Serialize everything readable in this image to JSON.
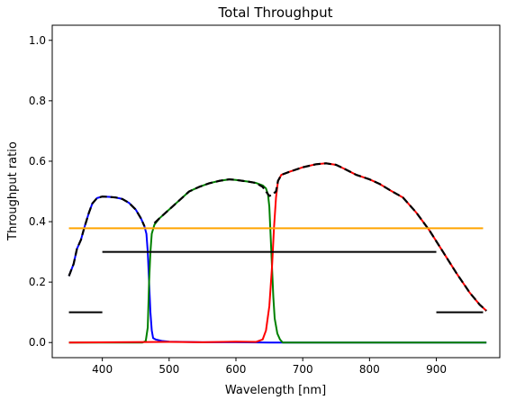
{
  "chart_data": {
    "type": "line",
    "title": "Total Throughput",
    "xlabel": "Wavelength [nm]",
    "ylabel": "Throughput ratio",
    "xlim": [
      325,
      995
    ],
    "ylim": [
      -0.05,
      1.05
    ],
    "xticks": [
      400,
      500,
      600,
      700,
      800,
      900
    ],
    "yticks": [
      0.0,
      0.2,
      0.4,
      0.6,
      0.8,
      1.0
    ],
    "x_tick_labels": [
      "400",
      "500",
      "600",
      "700",
      "800",
      "900"
    ],
    "y_tick_labels": [
      "0.0",
      "0.2",
      "0.4",
      "0.6",
      "0.8",
      "1.0"
    ],
    "grid": false,
    "legend": false,
    "series": [
      {
        "color": "#0000ff",
        "style": "solid",
        "points": [
          [
            350,
            0.22
          ],
          [
            357,
            0.26
          ],
          [
            362,
            0.31
          ],
          [
            368,
            0.34
          ],
          [
            373,
            0.38
          ],
          [
            380,
            0.43
          ],
          [
            385,
            0.46
          ],
          [
            392,
            0.478
          ],
          [
            400,
            0.483
          ],
          [
            410,
            0.482
          ],
          [
            420,
            0.48
          ],
          [
            430,
            0.475
          ],
          [
            440,
            0.462
          ],
          [
            450,
            0.44
          ],
          [
            458,
            0.41
          ],
          [
            463,
            0.385
          ],
          [
            466,
            0.36
          ],
          [
            468,
            0.3
          ],
          [
            470,
            0.2
          ],
          [
            472,
            0.1
          ],
          [
            474,
            0.04
          ],
          [
            476,
            0.015
          ],
          [
            480,
            0.01
          ],
          [
            490,
            0.005
          ],
          [
            500,
            0.003
          ],
          [
            520,
            0.002
          ],
          [
            550,
            0.001
          ],
          [
            600,
            0.001
          ],
          [
            650,
            0.0
          ],
          [
            700,
            0.0
          ],
          [
            800,
            0.0
          ],
          [
            975,
            0.0
          ]
        ]
      },
      {
        "color": "#008000",
        "style": "solid",
        "points": [
          [
            350,
            0.0
          ],
          [
            460,
            0.0
          ],
          [
            465,
            0.005
          ],
          [
            468,
            0.05
          ],
          [
            470,
            0.2
          ],
          [
            472,
            0.3
          ],
          [
            474,
            0.36
          ],
          [
            478,
            0.39
          ],
          [
            485,
            0.41
          ],
          [
            495,
            0.43
          ],
          [
            505,
            0.45
          ],
          [
            515,
            0.47
          ],
          [
            530,
            0.5
          ],
          [
            545,
            0.515
          ],
          [
            560,
            0.527
          ],
          [
            575,
            0.535
          ],
          [
            590,
            0.54
          ],
          [
            600,
            0.538
          ],
          [
            610,
            0.535
          ],
          [
            620,
            0.532
          ],
          [
            630,
            0.528
          ],
          [
            640,
            0.52
          ],
          [
            645,
            0.51
          ],
          [
            648,
            0.49
          ],
          [
            650,
            0.45
          ],
          [
            652,
            0.35
          ],
          [
            654,
            0.25
          ],
          [
            656,
            0.15
          ],
          [
            658,
            0.08
          ],
          [
            662,
            0.03
          ],
          [
            666,
            0.01
          ],
          [
            670,
            0.0
          ],
          [
            700,
            0.0
          ],
          [
            800,
            0.0
          ],
          [
            975,
            0.0
          ]
        ]
      },
      {
        "color": "#ff0000",
        "style": "solid",
        "points": [
          [
            350,
            0.0
          ],
          [
            500,
            0.002
          ],
          [
            550,
            0.001
          ],
          [
            600,
            0.003
          ],
          [
            630,
            0.002
          ],
          [
            640,
            0.01
          ],
          [
            645,
            0.04
          ],
          [
            650,
            0.12
          ],
          [
            654,
            0.25
          ],
          [
            657,
            0.38
          ],
          [
            660,
            0.48
          ],
          [
            663,
            0.535
          ],
          [
            668,
            0.555
          ],
          [
            680,
            0.565
          ],
          [
            700,
            0.58
          ],
          [
            720,
            0.59
          ],
          [
            735,
            0.593
          ],
          [
            750,
            0.588
          ],
          [
            765,
            0.572
          ],
          [
            780,
            0.555
          ],
          [
            800,
            0.54
          ],
          [
            815,
            0.525
          ],
          [
            830,
            0.505
          ],
          [
            850,
            0.48
          ],
          [
            870,
            0.43
          ],
          [
            890,
            0.37
          ],
          [
            910,
            0.3
          ],
          [
            930,
            0.23
          ],
          [
            950,
            0.165
          ],
          [
            965,
            0.125
          ],
          [
            975,
            0.105
          ]
        ]
      },
      {
        "color": "#000000",
        "style": "dashed",
        "points": [
          [
            350,
            0.22
          ],
          [
            357,
            0.26
          ],
          [
            362,
            0.31
          ],
          [
            368,
            0.34
          ],
          [
            373,
            0.38
          ],
          [
            380,
            0.43
          ],
          [
            385,
            0.46
          ],
          [
            392,
            0.478
          ],
          [
            400,
            0.483
          ],
          [
            410,
            0.482
          ],
          [
            420,
            0.48
          ],
          [
            430,
            0.475
          ],
          [
            440,
            0.462
          ],
          [
            450,
            0.44
          ],
          [
            458,
            0.41
          ],
          [
            463,
            0.385
          ]
        ]
      },
      {
        "color": "#000000",
        "style": "dashed",
        "points": [
          [
            478,
            0.395
          ],
          [
            485,
            0.41
          ],
          [
            495,
            0.43
          ],
          [
            505,
            0.45
          ],
          [
            515,
            0.47
          ],
          [
            530,
            0.5
          ],
          [
            545,
            0.515
          ],
          [
            560,
            0.527
          ],
          [
            575,
            0.535
          ],
          [
            590,
            0.54
          ],
          [
            600,
            0.538
          ],
          [
            610,
            0.535
          ],
          [
            620,
            0.532
          ],
          [
            630,
            0.528
          ],
          [
            640,
            0.515
          ],
          [
            645,
            0.5
          ],
          [
            650,
            0.485
          ],
          [
            655,
            0.49
          ],
          [
            660,
            0.5
          ],
          [
            663,
            0.535
          ],
          [
            668,
            0.555
          ],
          [
            680,
            0.565
          ],
          [
            700,
            0.58
          ],
          [
            720,
            0.59
          ],
          [
            735,
            0.593
          ],
          [
            750,
            0.588
          ],
          [
            765,
            0.572
          ],
          [
            780,
            0.555
          ],
          [
            800,
            0.54
          ],
          [
            815,
            0.525
          ],
          [
            830,
            0.505
          ],
          [
            850,
            0.48
          ],
          [
            870,
            0.43
          ],
          [
            890,
            0.37
          ],
          [
            910,
            0.3
          ],
          [
            930,
            0.23
          ],
          [
            950,
            0.165
          ],
          [
            965,
            0.125
          ],
          [
            975,
            0.105
          ]
        ]
      },
      {
        "color": "#ffa500",
        "style": "solid",
        "points": [
          [
            350,
            0.378
          ],
          [
            970,
            0.378
          ]
        ]
      },
      {
        "color": "#000000",
        "style": "solid",
        "points": [
          [
            400,
            0.3
          ],
          [
            900,
            0.3
          ]
        ]
      },
      {
        "color": "#000000",
        "style": "solid",
        "points": [
          [
            350,
            0.1
          ],
          [
            400,
            0.1
          ]
        ]
      },
      {
        "color": "#000000",
        "style": "solid",
        "points": [
          [
            900,
            0.1
          ],
          [
            970,
            0.1
          ]
        ]
      }
    ]
  }
}
